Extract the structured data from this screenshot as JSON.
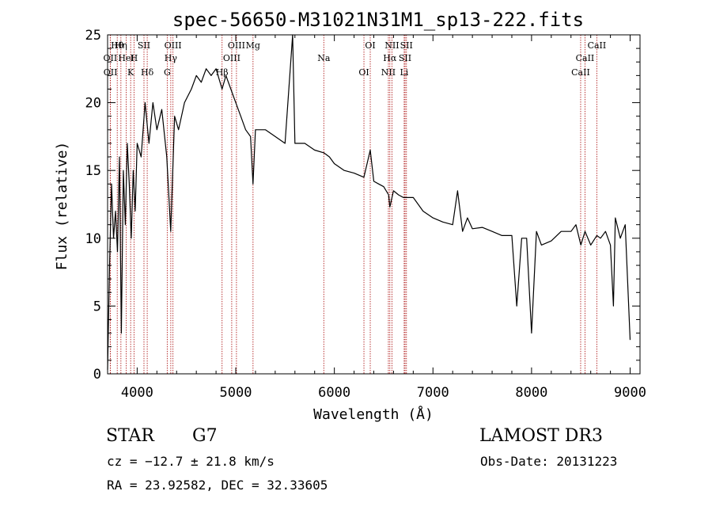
{
  "chart_data": {
    "type": "line",
    "title": "spec-56650-M31021N31M1_sp13-222.fits",
    "xlabel": "Wavelength (Å)",
    "ylabel": "Flux (relative)",
    "xlim": [
      3700,
      9100
    ],
    "ylim": [
      0,
      25
    ],
    "xticks": [
      4000,
      5000,
      6000,
      7000,
      8000,
      9000
    ],
    "yticks": [
      0,
      5,
      10,
      15,
      20,
      25
    ],
    "colors": {
      "spectrum": "#000000",
      "line_marker": "#b22222"
    },
    "series": [
      {
        "name": "spectrum",
        "x": [
          3700,
          3720,
          3740,
          3760,
          3780,
          3800,
          3820,
          3840,
          3860,
          3880,
          3900,
          3920,
          3940,
          3960,
          3980,
          4000,
          4040,
          4080,
          4120,
          4160,
          4200,
          4250,
          4300,
          4340,
          4380,
          4420,
          4480,
          4550,
          4600,
          4650,
          4700,
          4750,
          4800,
          4861,
          4900,
          4950,
          5000,
          5050,
          5100,
          5150,
          5175,
          5200,
          5300,
          5400,
          5500,
          5577,
          5600,
          5700,
          5800,
          5893,
          5950,
          6000,
          6100,
          6200,
          6300,
          6364,
          6400,
          6450,
          6500,
          6550,
          6563,
          6600,
          6650,
          6700,
          6800,
          6900,
          7000,
          7100,
          7200,
          7250,
          7300,
          7350,
          7400,
          7500,
          7600,
          7700,
          7800,
          7850,
          7900,
          7950,
          8000,
          8050,
          8100,
          8200,
          8300,
          8400,
          8450,
          8500,
          8542,
          8600,
          8662,
          8700,
          8750,
          8800,
          8830,
          8850,
          8900,
          8950,
          9000
        ],
        "y": [
          0.3,
          8,
          14,
          10,
          12,
          9,
          16,
          3,
          15,
          11,
          17,
          14,
          10,
          15,
          12,
          17,
          16,
          20,
          17,
          20,
          18,
          19.5,
          16,
          10.5,
          19,
          18,
          20,
          21,
          22,
          21.5,
          22.5,
          22,
          22.5,
          21,
          22,
          21,
          20,
          19,
          18,
          17.5,
          14,
          18,
          18,
          17.5,
          17,
          25,
          17,
          17,
          16.5,
          16.3,
          16,
          15.5,
          15,
          14.8,
          14.5,
          16.5,
          14.2,
          14,
          13.8,
          13.2,
          12.3,
          13.5,
          13.2,
          13,
          13,
          12,
          11.5,
          11.2,
          11,
          13.5,
          10.5,
          11.5,
          10.7,
          10.8,
          10.5,
          10.2,
          10.2,
          5,
          10,
          10,
          3,
          10.5,
          9.5,
          9.8,
          10.5,
          10.5,
          11,
          9.5,
          10.5,
          9.5,
          10.2,
          10,
          10.5,
          9.5,
          5,
          11.5,
          10,
          11,
          2.5
        ]
      }
    ],
    "lines": [
      {
        "name": "Hθ",
        "wavelength": 3798
      },
      {
        "name": "OII",
        "wavelength": 3727
      },
      {
        "name": "OII",
        "wavelength": 3729
      },
      {
        "name": "Hη",
        "wavelength": 3835
      },
      {
        "name": "HeI",
        "wavelength": 3889
      },
      {
        "name": "K",
        "wavelength": 3934
      },
      {
        "name": "SII",
        "wavelength": 4069
      },
      {
        "name": "H",
        "wavelength": 3968
      },
      {
        "name": "Hδ",
        "wavelength": 4102
      },
      {
        "name": "OIII",
        "wavelength": 4363
      },
      {
        "name": "Hγ",
        "wavelength": 4341
      },
      {
        "name": "G",
        "wavelength": 4305
      },
      {
        "name": "OIII",
        "wavelength": 5007
      },
      {
        "name": "OIII",
        "wavelength": 4959
      },
      {
        "name": "Hβ",
        "wavelength": 4861
      },
      {
        "name": "Mg",
        "wavelength": 5175
      },
      {
        "name": "Na",
        "wavelength": 5893
      },
      {
        "name": "OI",
        "wavelength": 6300
      },
      {
        "name": "OI",
        "wavelength": 6364
      },
      {
        "name": "Hα",
        "wavelength": 6563
      },
      {
        "name": "NII",
        "wavelength": 6548
      },
      {
        "name": "NII",
        "wavelength": 6584
      },
      {
        "name": "SII",
        "wavelength": 6717
      },
      {
        "name": "Li",
        "wavelength": 6708
      },
      {
        "name": "SII",
        "wavelength": 6731
      },
      {
        "name": "CaII",
        "wavelength": 8542
      },
      {
        "name": "CaII",
        "wavelength": 8498
      },
      {
        "name": "CaII",
        "wavelength": 8662
      }
    ]
  },
  "info": {
    "class_label": "STAR",
    "subclass_label": "G7",
    "redshift_text": "cz = −12.7 ± 21.8 km/s",
    "coords_text": "RA =  23.92582, DEC =  32.33605",
    "survey_label": "LAMOST DR3",
    "obs_date_text": "Obs-Date: 20131223"
  }
}
